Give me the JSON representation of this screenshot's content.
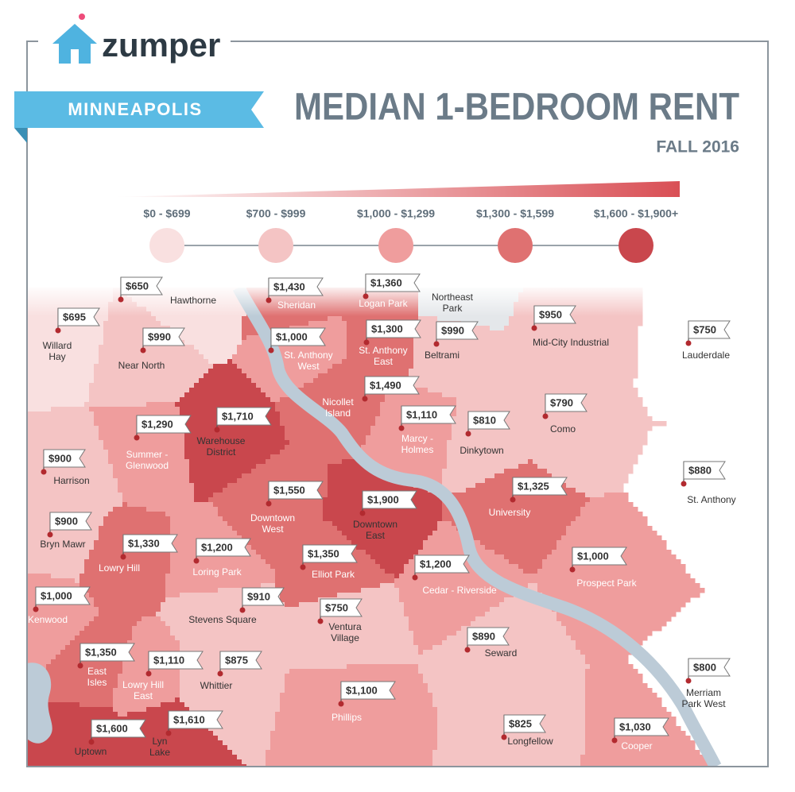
{
  "header": {
    "logo": "zumper",
    "city": "MINNEAPOLIS",
    "title": "MEDIAN 1-BEDROOM RENT",
    "subtitle": "FALL 2016"
  },
  "legend": [
    {
      "label": "$0 - $699",
      "color": "#f9e0e0"
    },
    {
      "label": "$700 - $999",
      "color": "#f4c4c4"
    },
    {
      "label": "$1,000 - $1,299",
      "color": "#ef9d9d"
    },
    {
      "label": "$1,300 - $1,599",
      "color": "#df7171"
    },
    {
      "label": "$1,600 - $1,900+",
      "color": "#c9474d"
    }
  ],
  "neighborhoods": [
    {
      "name": [
        "Hawthorne"
      ],
      "rent": "$650",
      "color": "#f9e0e0"
    },
    {
      "name": [
        "Sheridan"
      ],
      "rent": "$1,430",
      "color": "#df7171"
    },
    {
      "name": [
        "Logan Park"
      ],
      "rent": "$1,360",
      "color": "#df7171"
    },
    {
      "name": [
        "Northeast",
        "Park"
      ],
      "color": "#e4e7ea"
    },
    {
      "name": [
        "Willard",
        "Hay"
      ],
      "rent": "$695",
      "color": "#f9e0e0"
    },
    {
      "name": [
        "Near North"
      ],
      "rent": "$990",
      "color": "#f4c4c4"
    },
    {
      "name": [
        "St. Anthony",
        "West"
      ],
      "rent": "$1,000",
      "color": "#ef9d9d"
    },
    {
      "name": [
        "St. Anthony",
        "East"
      ],
      "rent": "$1,300",
      "color": "#df7171"
    },
    {
      "name": [
        "Beltrami"
      ],
      "rent": "$990",
      "color": "#f4c4c4"
    },
    {
      "name": [
        "Mid-City Industrial"
      ],
      "rent": "$950",
      "color": "#f4c4c4"
    },
    {
      "name": [
        "Lauderdale"
      ],
      "rent": "$750",
      "color": "#f4c4c4"
    },
    {
      "name": [
        "Nicollet",
        "Island"
      ],
      "rent": "$1,490",
      "color": "#df7171"
    },
    {
      "name": [
        "Warehouse",
        "District"
      ],
      "rent": "$1,710",
      "color": "#c9474d"
    },
    {
      "name": [
        "Summer -",
        "Glenwood"
      ],
      "rent": "$1,290",
      "color": "#ef9d9d"
    },
    {
      "name": [
        "Marcy -",
        "Holmes"
      ],
      "rent": "$1,110",
      "color": "#ef9d9d"
    },
    {
      "name": [
        "Dinkytown"
      ],
      "rent": "$810",
      "color": "#f4c4c4"
    },
    {
      "name": [
        "Como"
      ],
      "rent": "$790",
      "color": "#f4c4c4"
    },
    {
      "name": [
        "Harrison"
      ],
      "rent": "$900",
      "color": "#f4c4c4"
    },
    {
      "name": [
        "St. Anthony"
      ],
      "rent": "$880",
      "color": "#f4c4c4"
    },
    {
      "name": [
        "Downtown",
        "West"
      ],
      "rent": "$1,550",
      "color": "#df7171"
    },
    {
      "name": [
        "Downtown",
        "East"
      ],
      "rent": "$1,900",
      "color": "#c9474d"
    },
    {
      "name": [
        "University"
      ],
      "rent": "$1,325",
      "color": "#df7171"
    },
    {
      "name": [
        "Bryn Mawr"
      ],
      "rent": "$900",
      "color": "#f4c4c4"
    },
    {
      "name": [
        "Lowry Hill"
      ],
      "rent": "$1,330",
      "color": "#df7171"
    },
    {
      "name": [
        "Loring Park"
      ],
      "rent": "$1,200",
      "color": "#ef9d9d"
    },
    {
      "name": [
        "Elliot Park"
      ],
      "rent": "$1,350",
      "color": "#df7171"
    },
    {
      "name": [
        "Cedar - Riverside"
      ],
      "rent": "$1,200",
      "color": "#ef9d9d"
    },
    {
      "name": [
        "Prospect Park"
      ],
      "rent": "$1,000",
      "color": "#ef9d9d"
    },
    {
      "name": [
        "Kenwood"
      ],
      "rent": "$1,000",
      "color": "#ef9d9d"
    },
    {
      "name": [
        "Stevens Square"
      ],
      "rent": "$910",
      "color": "#f4c4c4"
    },
    {
      "name": [
        "Ventura",
        "Village"
      ],
      "rent": "$750",
      "color": "#f4c4c4"
    },
    {
      "name": [
        "Seward"
      ],
      "rent": "$890",
      "color": "#f4c4c4"
    },
    {
      "name": [
        "East",
        "Isles"
      ],
      "rent": "$1,350",
      "color": "#df7171"
    },
    {
      "name": [
        "Lowry Hill",
        "East"
      ],
      "rent": "$1,110",
      "color": "#ef9d9d"
    },
    {
      "name": [
        "Whittier"
      ],
      "rent": "$875",
      "color": "#f4c4c4"
    },
    {
      "name": [
        "Merriam",
        "Park West"
      ],
      "rent": "$800",
      "color": "#f4c4c4"
    },
    {
      "name": [
        "Phillips"
      ],
      "rent": "$1,100",
      "color": "#ef9d9d"
    },
    {
      "name": [
        "Longfellow"
      ],
      "rent": "$825",
      "color": "#f4c4c4"
    },
    {
      "name": [
        "Uptown"
      ],
      "rent": "$1,600",
      "color": "#c9474d"
    },
    {
      "name": [
        "Lyn",
        "Lake"
      ],
      "rent": "$1,610",
      "color": "#c9474d"
    },
    {
      "name": [
        "Cooper"
      ],
      "rent": "$1,030",
      "color": "#ef9d9d"
    }
  ]
}
